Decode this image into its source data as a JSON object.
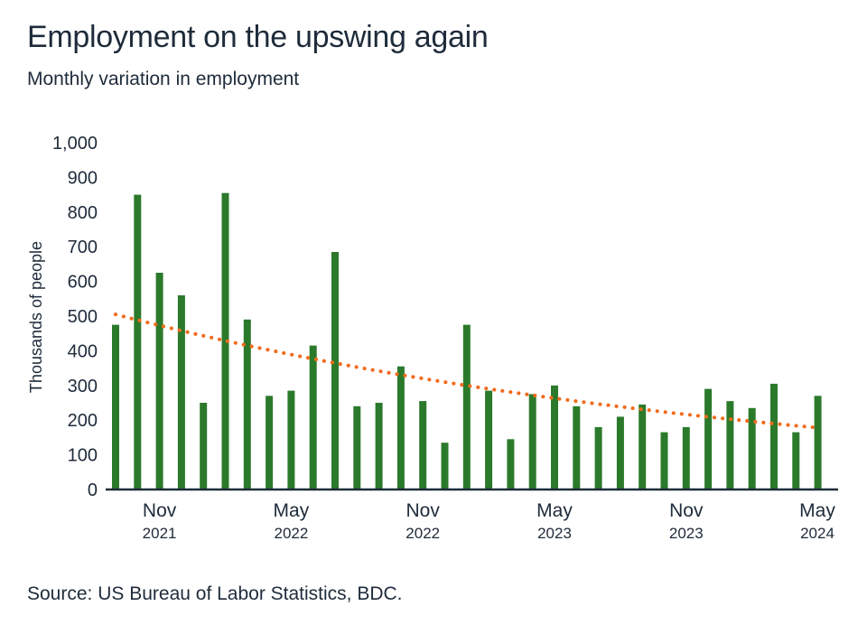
{
  "title": "Employment on the upswing again",
  "subtitle": "Monthly variation in employment",
  "source": "Source: US Bureau of Labor Statistics, BDC.",
  "colors": {
    "bar": "#2b7a2b",
    "trend": "#f26a1b",
    "axis": "#1e2b3a",
    "text": "#1e2b3a"
  },
  "chart_data": {
    "type": "bar",
    "ylabel": "Thousands of people",
    "ylim": [
      0,
      1000
    ],
    "yticks": [
      0,
      100,
      200,
      300,
      400,
      500,
      600,
      700,
      800,
      900,
      1000
    ],
    "ytick_labels": [
      "0",
      "100",
      "200",
      "300",
      "400",
      "500",
      "600",
      "700",
      "800",
      "900",
      "1,000"
    ],
    "grid": false,
    "categories": [
      "2021-09",
      "2021-10",
      "2021-11",
      "2021-12",
      "2022-01",
      "2022-02",
      "2022-03",
      "2022-04",
      "2022-05",
      "2022-06",
      "2022-07",
      "2022-08",
      "2022-09",
      "2022-10",
      "2022-11",
      "2022-12",
      "2023-01",
      "2023-02",
      "2023-03",
      "2023-04",
      "2023-05",
      "2023-06",
      "2023-07",
      "2023-08",
      "2023-09",
      "2023-10",
      "2023-11",
      "2023-12",
      "2024-01",
      "2024-02",
      "2024-03",
      "2024-04",
      "2024-05"
    ],
    "values": [
      475,
      850,
      625,
      560,
      250,
      855,
      490,
      270,
      285,
      415,
      685,
      240,
      250,
      355,
      255,
      135,
      475,
      285,
      145,
      275,
      300,
      240,
      180,
      210,
      245,
      165,
      180,
      290,
      255,
      235,
      305,
      165,
      270
    ],
    "x_tick_labels": [
      {
        "category": "2021-11",
        "month": "Nov",
        "year": "2021"
      },
      {
        "category": "2022-05",
        "month": "May",
        "year": "2022"
      },
      {
        "category": "2022-11",
        "month": "Nov",
        "year": "2022"
      },
      {
        "category": "2023-05",
        "month": "May",
        "year": "2023"
      },
      {
        "category": "2023-11",
        "month": "Nov",
        "year": "2023"
      },
      {
        "category": "2024-05",
        "month": "May",
        "year": "2024"
      }
    ],
    "trend": {
      "style": "dotted",
      "start": 505,
      "end": 178
    }
  }
}
